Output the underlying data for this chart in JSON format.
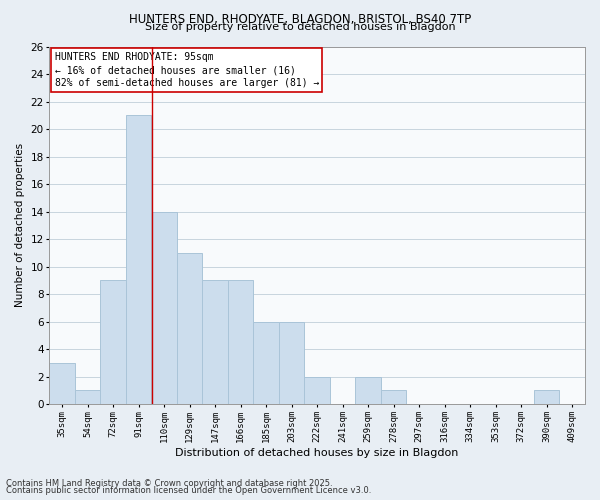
{
  "title1": "HUNTERS END, RHODYATE, BLAGDON, BRISTOL, BS40 7TP",
  "title2": "Size of property relative to detached houses in Blagdon",
  "xlabel": "Distribution of detached houses by size in Blagdon",
  "ylabel": "Number of detached properties",
  "categories": [
    "35sqm",
    "54sqm",
    "72sqm",
    "91sqm",
    "110sqm",
    "129sqm",
    "147sqm",
    "166sqm",
    "185sqm",
    "203sqm",
    "222sqm",
    "241sqm",
    "259sqm",
    "278sqm",
    "297sqm",
    "316sqm",
    "334sqm",
    "353sqm",
    "372sqm",
    "390sqm",
    "409sqm"
  ],
  "values": [
    3,
    1,
    9,
    21,
    14,
    11,
    9,
    9,
    6,
    6,
    2,
    0,
    2,
    1,
    0,
    0,
    0,
    0,
    0,
    1,
    0
  ],
  "bar_color": "#ccdded",
  "bar_edge_color": "#aac4d8",
  "red_line_x": 3.52,
  "annotation_line1": "HUNTERS END RHODYATE: 95sqm",
  "annotation_line2": "← 16% of detached houses are smaller (16)",
  "annotation_line3": "82% of semi-detached houses are larger (81) →",
  "annotation_box_facecolor": "#ffffff",
  "annotation_box_edgecolor": "#cc0000",
  "footnote1": "Contains HM Land Registry data © Crown copyright and database right 2025.",
  "footnote2": "Contains public sector information licensed under the Open Government Licence v3.0.",
  "ylim": [
    0,
    26
  ],
  "yticks": [
    0,
    2,
    4,
    6,
    8,
    10,
    12,
    14,
    16,
    18,
    20,
    22,
    24,
    26
  ],
  "background_color": "#e8eef4",
  "plot_background": "#f8fafc",
  "grid_color": "#c8d4de",
  "title1_fontsize": 8.5,
  "title2_fontsize": 8.0,
  "xlabel_fontsize": 8.0,
  "ylabel_fontsize": 7.5,
  "xtick_fontsize": 6.5,
  "ytick_fontsize": 7.5,
  "annot_fontsize": 7.0,
  "footnote_fontsize": 6.0
}
